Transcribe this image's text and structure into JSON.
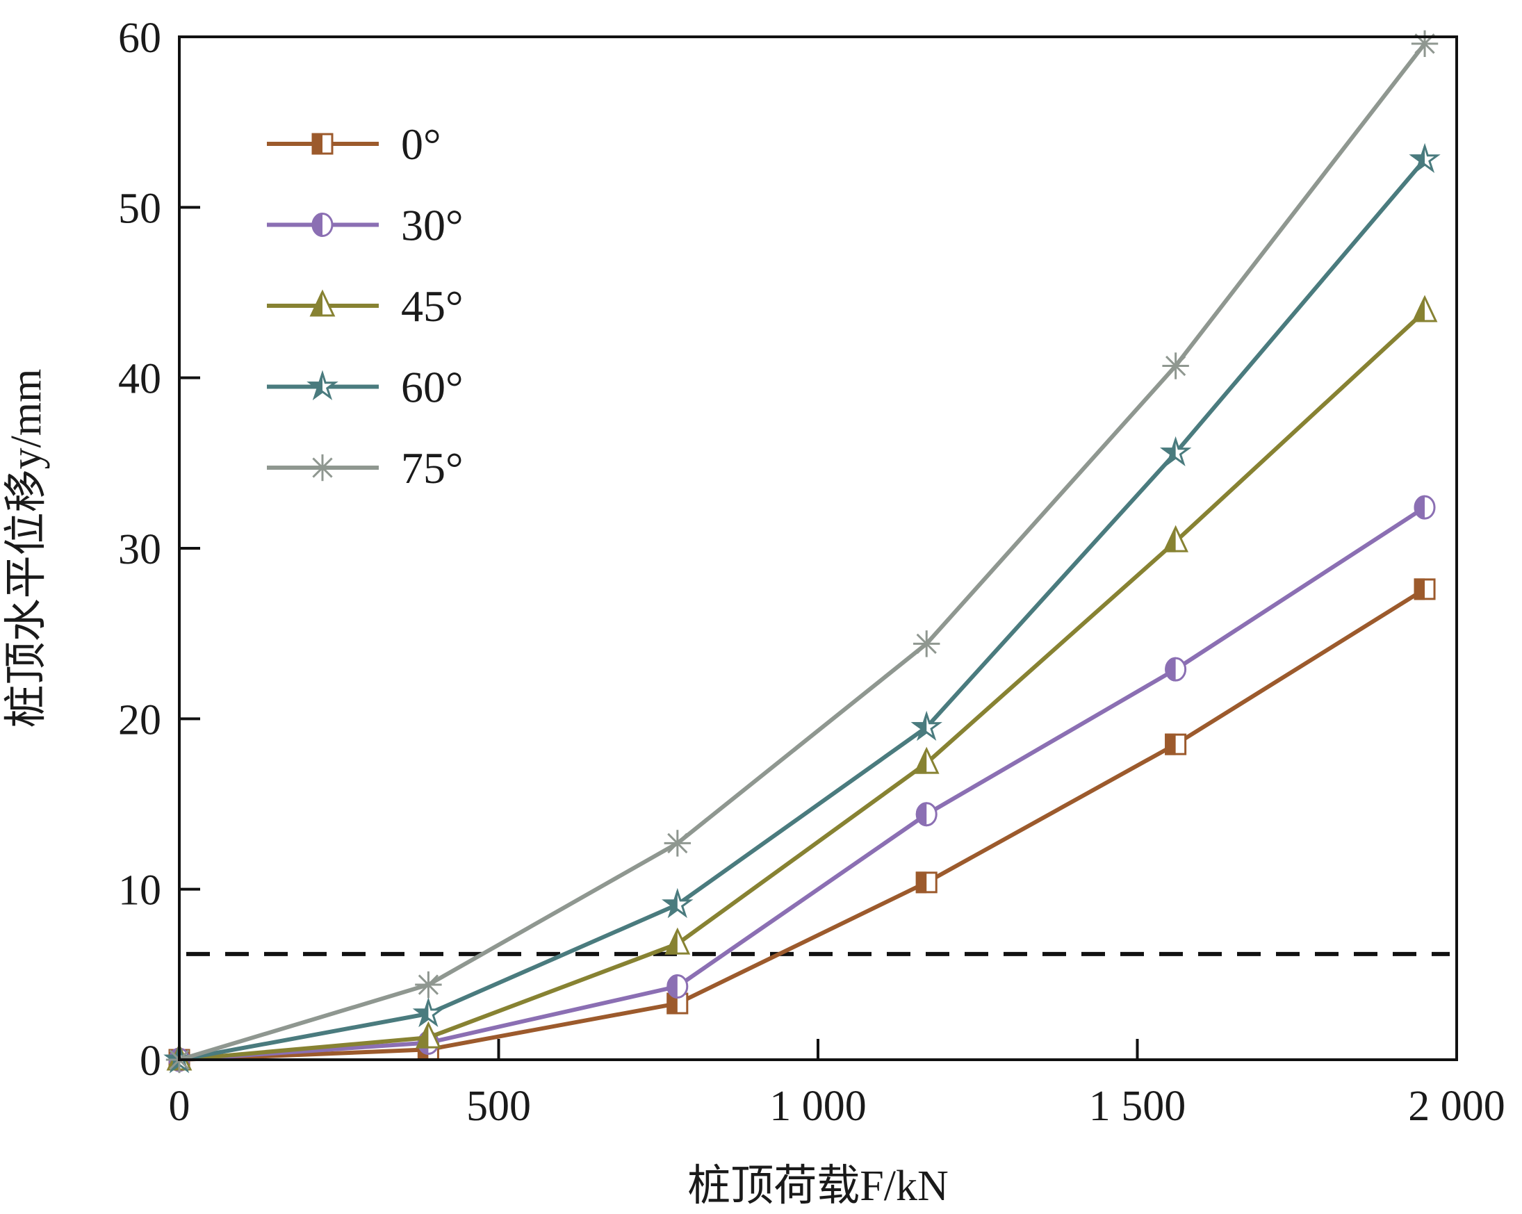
{
  "chart_data": {
    "type": "line",
    "title": "",
    "xlabel": "桩顶荷载F/kN",
    "ylabel": "桩顶水平位移y/mm",
    "xlim": [
      0,
      2000
    ],
    "ylim": [
      0,
      60
    ],
    "xticks": [
      0,
      500,
      1000,
      1500,
      2000
    ],
    "xtick_labels": [
      "0",
      "500",
      "1 000",
      "1 500",
      "2 000"
    ],
    "yticks": [
      0,
      10,
      20,
      30,
      40,
      50,
      60
    ],
    "ytick_labels": [
      "0",
      "10",
      "20",
      "30",
      "40",
      "50",
      "60"
    ],
    "grid": false,
    "legend_position": "top-left",
    "x": [
      0,
      390,
      780,
      1170,
      1560,
      1950
    ],
    "series": [
      {
        "name": "0°",
        "color": "#9c5a2c",
        "marker": "square-half",
        "values": [
          0,
          0.6,
          3.3,
          10.4,
          18.5,
          27.6
        ]
      },
      {
        "name": "30°",
        "color": "#8b6fb3",
        "marker": "circle-half",
        "values": [
          0,
          1.0,
          4.3,
          14.4,
          22.9,
          32.4
        ]
      },
      {
        "name": "45°",
        "color": "#878232",
        "marker": "triangle-half",
        "values": [
          0,
          1.3,
          6.8,
          17.4,
          30.4,
          43.9
        ]
      },
      {
        "name": "60°",
        "color": "#4a7b7e",
        "marker": "star-half",
        "values": [
          0,
          2.7,
          9.1,
          19.5,
          35.6,
          52.8
        ]
      },
      {
        "name": "75°",
        "color": "#8f9790",
        "marker": "asterisk",
        "values": [
          0,
          4.4,
          12.7,
          24.4,
          40.7,
          59.6
        ]
      }
    ],
    "reference_line": {
      "y": 6.2,
      "style": "dashed",
      "color": "#111111"
    }
  }
}
